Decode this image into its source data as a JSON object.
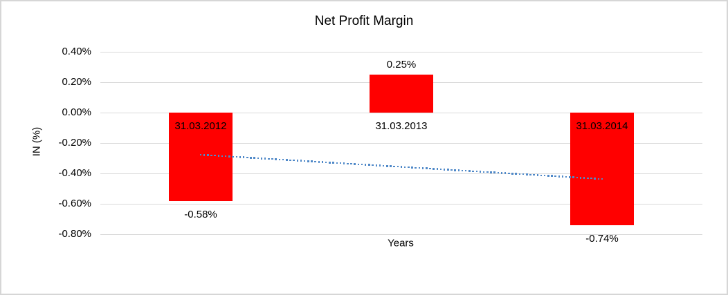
{
  "chart_data": {
    "type": "bar",
    "title": "Net Profit Margin",
    "xlabel": "Years",
    "ylabel": "IN (%)",
    "categories": [
      "31.03.2012",
      "31.03.2013",
      "31.03.2014"
    ],
    "series": [
      {
        "name": "Net Profit Margin",
        "values": [
          -0.58,
          0.25,
          -0.74
        ]
      }
    ],
    "data_labels": [
      "-0.58%",
      "0.25%",
      "-0.74%"
    ],
    "yticks": [
      {
        "label": "0.40%",
        "value": 0.4
      },
      {
        "label": "0.20%",
        "value": 0.2
      },
      {
        "label": "0.00%",
        "value": 0.0
      },
      {
        "label": "-0.20%",
        "value": -0.2
      },
      {
        "label": "-0.40%",
        "value": -0.4
      },
      {
        "label": "-0.60%",
        "value": -0.6
      },
      {
        "label": "-0.80%",
        "value": -0.8
      }
    ],
    "ylim": [
      -0.8,
      0.4
    ],
    "grid": true,
    "legend": "none",
    "trendline": {
      "type": "linear",
      "style": "dotted",
      "from_category": 0,
      "to_category": 2,
      "start_value": -0.277,
      "end_value": -0.437
    },
    "colors": {
      "bar": "#FF0000",
      "gridline": "#D9D9D9",
      "trendline": "#5089C8",
      "text": "#000000",
      "border": "#D6D6D6",
      "background": "#FFFFFF"
    }
  }
}
